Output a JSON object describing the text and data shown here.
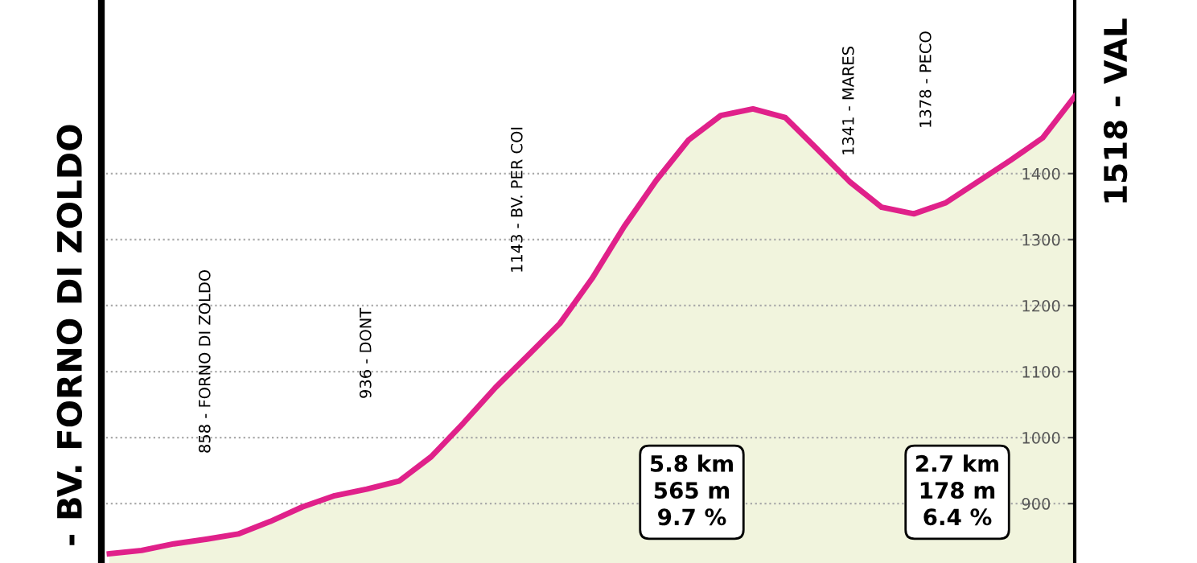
{
  "chart_data": {
    "type": "area",
    "categories": [
      null,
      null,
      null,
      null,
      null,
      null,
      null,
      null,
      null,
      null,
      null,
      null,
      null,
      null,
      null,
      null,
      null,
      null,
      null,
      null,
      null,
      null,
      null,
      null,
      null,
      null,
      null,
      null,
      null,
      null,
      null
    ],
    "series": [
      {
        "color": "#e0218a",
        "values": [
          824,
          829,
          839,
          846,
          854,
          873,
          895,
          912,
          922,
          934,
          971,
          1022,
          1076,
          1124,
          1173,
          1241,
          1320,
          1390,
          1451,
          1488,
          1498,
          1485,
          1437,
          1388,
          1349,
          1339,
          1356,
          1388,
          1420,
          1454,
          1517
        ]
      }
    ],
    "ylim": [
      810,
      1663
    ],
    "yticks": [
      900,
      1000,
      1100,
      1200,
      1300,
      1400
    ],
    "grid": "y",
    "annotations": [
      "- BV. FORNO DI ZOLDO",
      "858 - FORNO DI ZOLDO",
      "936 - DONT",
      "1143 - BV. PER COI",
      "1341 - MARES",
      "1378 - PECO",
      "1518 - VAL",
      "5.8 km\n565 m\n9.7 %",
      "2.7 km\n178 m\n6.4 %"
    ]
  }
}
